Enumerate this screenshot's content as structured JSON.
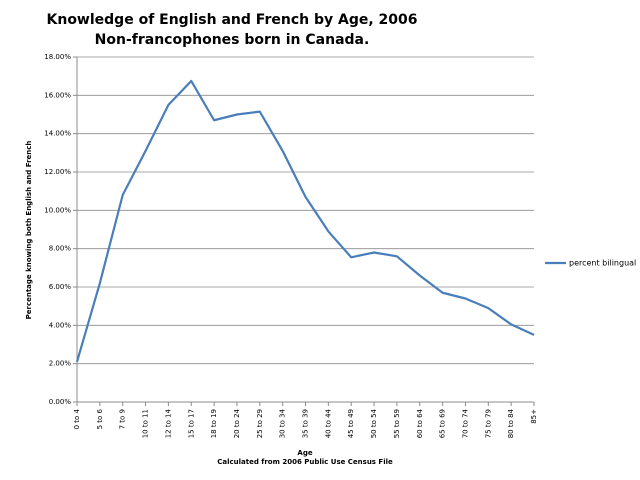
{
  "chart_data": {
    "type": "line",
    "title": "Knowledge of English and French by Age, 2006",
    "subtitle": "Non-francophones born in Canada.",
    "xlabel": "Age",
    "note": "Calculated from 2006 Public Use Census File",
    "ylabel": "Percentage knowing both English and French",
    "categories": [
      "0 to 4",
      "5 to 6",
      "7 to 9",
      "10 to 11",
      "12 to 14",
      "15 to 17",
      "18 to 19",
      "20 to 24",
      "25 to 29",
      "30 to 34",
      "35 to 39",
      "40 to 44",
      "45 to 49",
      "50 to 54",
      "55 to 59",
      "60 to 64",
      "65 to 69",
      "70 to 74",
      "75 to 79",
      "80 to 84",
      "85+"
    ],
    "series": [
      {
        "name": "percent bilingual",
        "color": "#4a7ebb",
        "values": [
          2.1,
          6.2,
          10.8,
          13.1,
          15.5,
          16.75,
          14.7,
          15.0,
          15.15,
          13.1,
          10.7,
          8.9,
          7.55,
          7.8,
          7.6,
          6.6,
          5.7,
          5.4,
          4.9,
          4.05,
          3.5
        ]
      }
    ],
    "ylim": [
      0,
      18
    ],
    "yticks": [
      {
        "value": 0,
        "label": "0.00%"
      },
      {
        "value": 2,
        "label": "2.00%"
      },
      {
        "value": 4,
        "label": "4.00%"
      },
      {
        "value": 6,
        "label": "6.00%"
      },
      {
        "value": 8,
        "label": "8.00%"
      },
      {
        "value": 10,
        "label": "10.00%"
      },
      {
        "value": 12,
        "label": "12.00%"
      },
      {
        "value": 14,
        "label": "14.00%"
      },
      {
        "value": 16,
        "label": "16.00%"
      },
      {
        "value": 18,
        "label": "18.00%"
      }
    ],
    "grid": true,
    "legend": "right"
  }
}
